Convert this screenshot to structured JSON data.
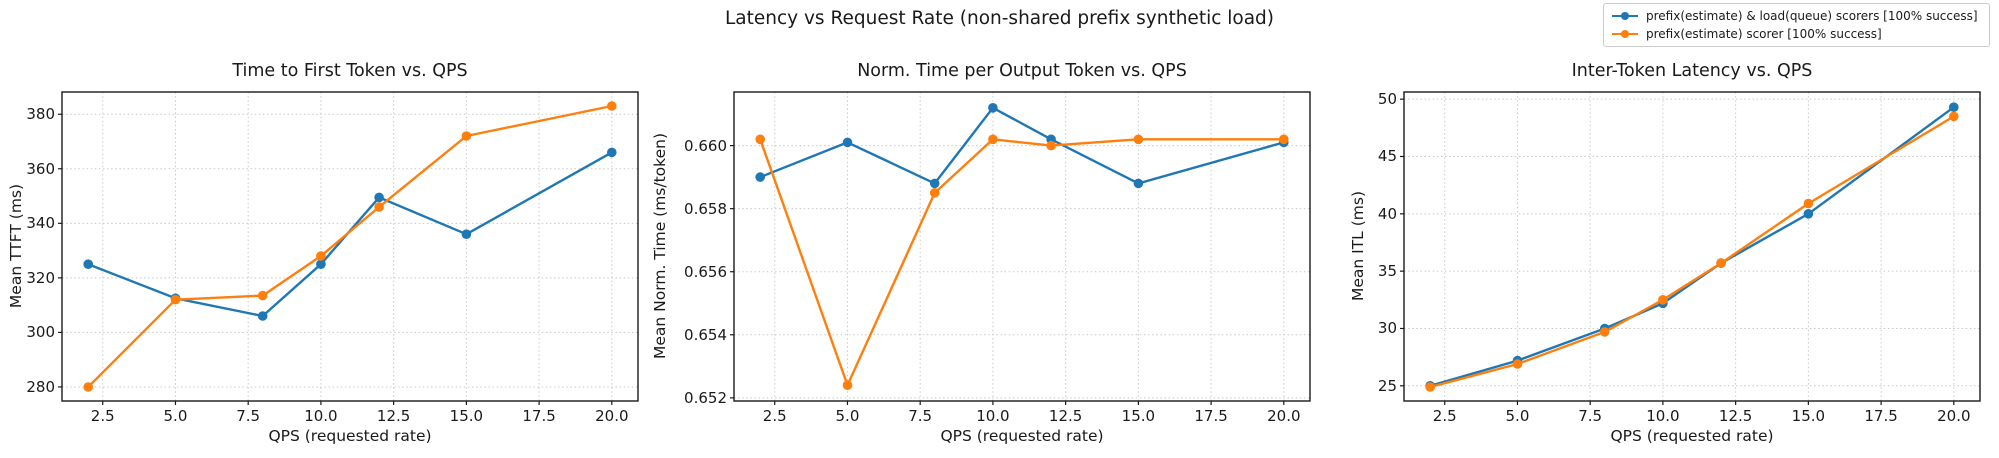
{
  "figure_title": "Latency vs Request Rate (non-shared prefix synthetic load)",
  "legend": {
    "items": [
      {
        "label": "prefix(estimate) & load(queue) scorers [100% success]",
        "color": "#1f77b4"
      },
      {
        "label": "prefix(estimate) scorer [100% success]",
        "color": "#ff7f0e"
      }
    ]
  },
  "colors": {
    "series_blue": "#1f77b4",
    "series_orange": "#ff7f0e",
    "grid": "#c9c9c9",
    "axes_edge": "#1a1a1a",
    "background": "#ffffff"
  },
  "chart_data": [
    {
      "type": "line",
      "title": "Time to First Token vs. QPS",
      "xlabel": "QPS (requested rate)",
      "ylabel": "Mean TTFT (ms)",
      "x": [
        2,
        5,
        8,
        10,
        12,
        15,
        20
      ],
      "series": [
        {
          "name": "prefix(estimate) & load(queue) scorers [100% success]",
          "color": "#1f77b4",
          "values": [
            325,
            312.5,
            306,
            325,
            349.5,
            336,
            366
          ]
        },
        {
          "name": "prefix(estimate) scorer [100% success]",
          "color": "#ff7f0e",
          "values": [
            280,
            312,
            313.5,
            328,
            346,
            372,
            383
          ]
        }
      ],
      "xlim": [
        1.1,
        20.9
      ],
      "ylim": [
        274.85,
        388.15
      ],
      "xticks": {
        "values": [
          2.5,
          5,
          7.5,
          10,
          12.5,
          15,
          17.5,
          20
        ],
        "labels": [
          "2.5",
          "5.0",
          "7.5",
          "10.0",
          "12.5",
          "15.0",
          "17.5",
          "20.0"
        ]
      },
      "yticks": {
        "values": [
          280,
          300,
          320,
          340,
          360,
          380
        ],
        "labels": [
          "280",
          "300",
          "320",
          "340",
          "360",
          "380"
        ]
      },
      "grid": true,
      "legend_position": "figure-top-right"
    },
    {
      "type": "line",
      "title": "Norm. Time per Output Token vs. QPS",
      "xlabel": "QPS (requested rate)",
      "ylabel": "Mean Norm. Time (ms/token)",
      "x": [
        2,
        5,
        8,
        10,
        12,
        15,
        20
      ],
      "series": [
        {
          "name": "prefix(estimate) & load(queue) scorers [100% success]",
          "color": "#1f77b4",
          "values": [
            0.659,
            0.6601,
            0.6588,
            0.6612,
            0.6602,
            0.6588,
            0.6601
          ]
        },
        {
          "name": "prefix(estimate) scorer [100% success]",
          "color": "#ff7f0e",
          "values": [
            0.6602,
            0.6524,
            0.6585,
            0.6602,
            0.66,
            0.6602,
            0.6602
          ]
        }
      ],
      "xlim": [
        1.1,
        20.9
      ],
      "ylim": [
        0.6519,
        0.6617
      ],
      "xticks": {
        "values": [
          2.5,
          5,
          7.5,
          10,
          12.5,
          15,
          17.5,
          20
        ],
        "labels": [
          "2.5",
          "5.0",
          "7.5",
          "10.0",
          "12.5",
          "15.0",
          "17.5",
          "20.0"
        ]
      },
      "yticks": {
        "values": [
          0.652,
          0.654,
          0.656,
          0.658,
          0.66
        ],
        "labels": [
          "0.652",
          "0.654",
          "0.656",
          "0.658",
          "0.660"
        ]
      },
      "grid": true,
      "legend_position": "figure-top-right"
    },
    {
      "type": "line",
      "title": "Inter-Token Latency vs. QPS",
      "xlabel": "QPS (requested rate)",
      "ylabel": "Mean ITL (ms)",
      "x": [
        2,
        5,
        8,
        10,
        12,
        15,
        20
      ],
      "series": [
        {
          "name": "prefix(estimate) & load(queue) scorers [100% success]",
          "color": "#1f77b4",
          "values": [
            25.0,
            27.2,
            30.0,
            32.2,
            35.7,
            40.0,
            49.3
          ]
        },
        {
          "name": "prefix(estimate) scorer [100% success]",
          "color": "#ff7f0e",
          "values": [
            24.9,
            26.9,
            29.7,
            32.5,
            35.7,
            40.9,
            48.5
          ]
        }
      ],
      "xlim": [
        1.1,
        20.9
      ],
      "ylim": [
        23.675,
        50.625
      ],
      "xticks": {
        "values": [
          2.5,
          5,
          7.5,
          10,
          12.5,
          15,
          17.5,
          20
        ],
        "labels": [
          "2.5",
          "5.0",
          "7.5",
          "10.0",
          "12.5",
          "15.0",
          "17.5",
          "20.0"
        ]
      },
      "yticks": {
        "values": [
          25,
          30,
          35,
          40,
          45,
          50
        ],
        "labels": [
          "25",
          "30",
          "35",
          "40",
          "45",
          "50"
        ]
      },
      "grid": true,
      "legend_position": "figure-top-right"
    }
  ]
}
